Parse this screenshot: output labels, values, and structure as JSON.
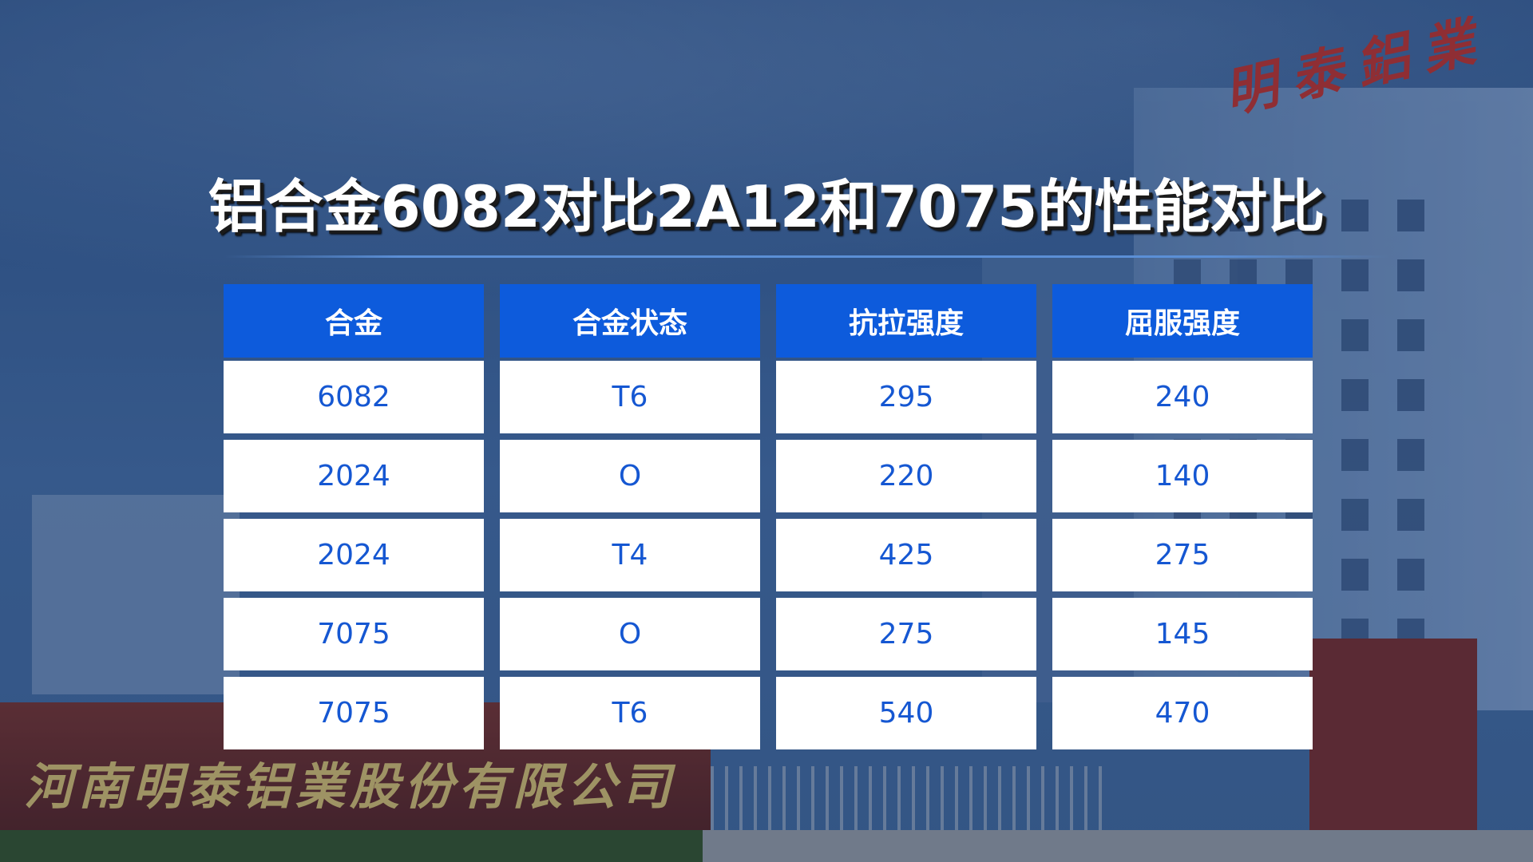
{
  "title": "铝合金6082对比2A12和7075的性能对比",
  "background": {
    "wall_sign": "河南明泰铝業股份有限公司",
    "roof_sign": "明泰鋁業"
  },
  "colors": {
    "header": "#0d5bdc",
    "cell_text": "#1557d2",
    "cell_bg": "#ffffff"
  },
  "table": {
    "headers": [
      "合金",
      "合金状态",
      "抗拉强度",
      "屈服强度"
    ],
    "rows": [
      [
        "6082",
        "T6",
        "295",
        "240"
      ],
      [
        "2024",
        "O",
        "220",
        "140"
      ],
      [
        "2024",
        "T4",
        "425",
        "275"
      ],
      [
        "7075",
        "O",
        "275",
        "145"
      ],
      [
        "7075",
        "T6",
        "540",
        "470"
      ]
    ]
  }
}
